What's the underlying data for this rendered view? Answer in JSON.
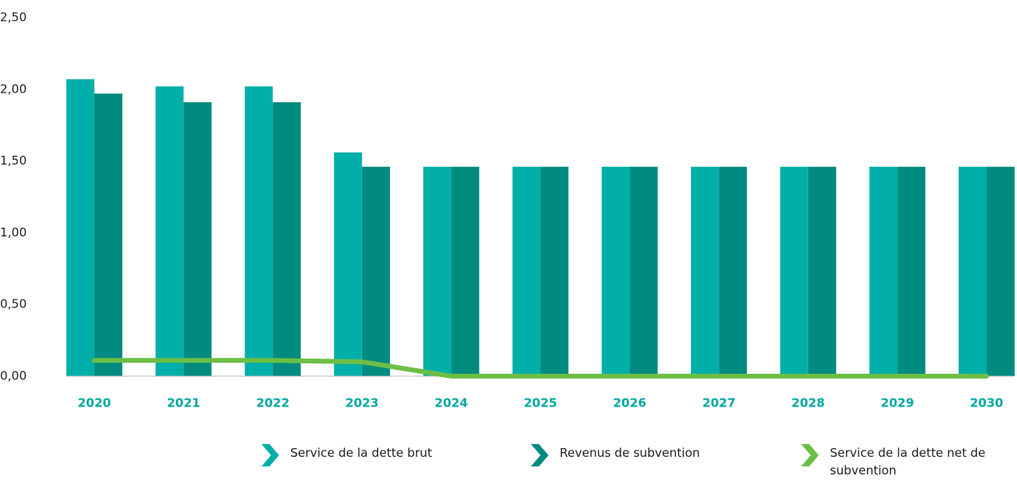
{
  "chart_data": {
    "type": "bar",
    "categories": [
      "2020",
      "2021",
      "2022",
      "2023",
      "2024",
      "2025",
      "2026",
      "2027",
      "2028",
      "2029",
      "2030"
    ],
    "series": [
      {
        "name": "Service de la dette brut",
        "color": "#00afa9",
        "type": "bar",
        "values": [
          2.07,
          2.02,
          2.02,
          1.56,
          1.46,
          1.46,
          1.46,
          1.46,
          1.46,
          1.46,
          1.46
        ]
      },
      {
        "name": "Revenus de subvention",
        "color": "#008b80",
        "type": "bar",
        "values": [
          1.97,
          1.91,
          1.91,
          1.46,
          1.46,
          1.46,
          1.46,
          1.46,
          1.46,
          1.46,
          1.46
        ]
      },
      {
        "name": "Service de la dette net de subvention",
        "color": "#6dbe45",
        "type": "line",
        "values": [
          0.11,
          0.11,
          0.11,
          0.1,
          0,
          0,
          0,
          0,
          0,
          0,
          0
        ]
      }
    ],
    "ylim": [
      0,
      2.5
    ],
    "yticks": [
      {
        "value": 0,
        "label": "0,00"
      },
      {
        "value": 0.5,
        "label": "0,50"
      },
      {
        "value": 1,
        "label": "1,00"
      },
      {
        "value": 1.5,
        "label": "1,50"
      },
      {
        "value": 2,
        "label": "2,00"
      },
      {
        "value": 2.5,
        "label": "2,50"
      }
    ],
    "grid": false,
    "legend": "bottom"
  }
}
